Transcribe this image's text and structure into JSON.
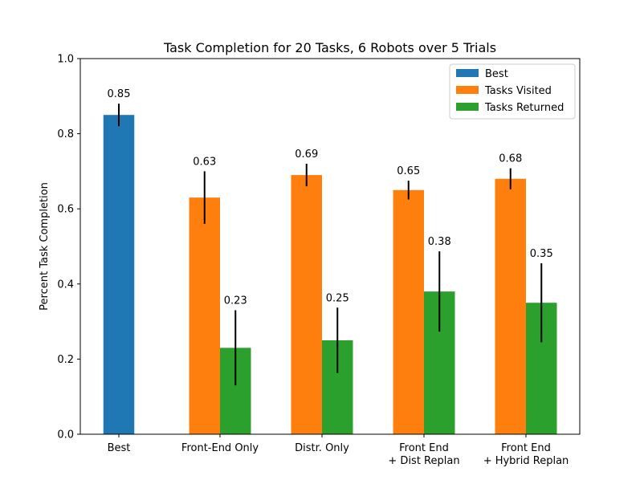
{
  "chart_data": {
    "type": "bar",
    "title": "Task Completion for 20 Tasks, 6 Robots over 5 Trials",
    "ylabel": "Percent Task Completion",
    "xlabel": "",
    "ylim": [
      0.0,
      1.0
    ],
    "yticks": [
      "0.0",
      "0.2",
      "0.4",
      "0.6",
      "0.8",
      "1.0"
    ],
    "grid": false,
    "legend_position": "top-right",
    "categories": [
      {
        "lines": [
          "Best"
        ]
      },
      {
        "lines": [
          "Front-End Only"
        ]
      },
      {
        "lines": [
          "Distr. Only"
        ]
      },
      {
        "lines": [
          "Front End",
          "+ Dist Replan"
        ]
      },
      {
        "lines": [
          "Front End",
          "+ Hybrid Replan"
        ]
      }
    ],
    "series": [
      {
        "name": "Best",
        "color": "#1f77b4",
        "values": [
          0.85,
          null,
          null,
          null,
          null
        ],
        "errors": [
          0.03,
          null,
          null,
          null,
          null
        ],
        "labels": [
          "0.85",
          null,
          null,
          null,
          null
        ]
      },
      {
        "name": "Tasks Visited",
        "color": "#ff7f0e",
        "values": [
          null,
          0.63,
          0.69,
          0.65,
          0.68
        ],
        "errors": [
          null,
          0.07,
          0.03,
          0.025,
          0.028
        ],
        "labels": [
          null,
          "0.63",
          "0.69",
          "0.65",
          "0.68"
        ]
      },
      {
        "name": "Tasks Returned",
        "color": "#2ca02c",
        "values": [
          null,
          0.23,
          0.25,
          0.38,
          0.35
        ],
        "errors": [
          null,
          0.1,
          0.087,
          0.107,
          0.105
        ],
        "labels": [
          null,
          "0.23",
          "0.25",
          "0.38",
          "0.35"
        ]
      }
    ]
  }
}
